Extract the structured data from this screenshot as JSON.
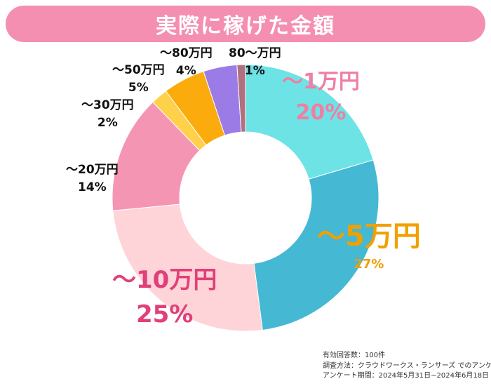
{
  "chart_data": {
    "type": "pie",
    "title": "実際に稼げた金額",
    "categories": [
      "〜1万円",
      "〜5万円",
      "〜10万円",
      "〜20万円",
      "〜30万円",
      "〜50万円",
      "〜80万円",
      "80〜万円"
    ],
    "values": [
      20,
      27,
      25,
      14,
      2,
      5,
      4,
      1
    ],
    "value_labels": [
      "20%",
      "27%",
      "25%",
      "14%",
      "2%",
      "5%",
      "4%",
      "1%"
    ],
    "colors": [
      "#6ee3e6",
      "#45b8d4",
      "#ffd4d8",
      "#f595b4",
      "#ffd04a",
      "#fbab0c",
      "#9b7ce6",
      "#b07080"
    ],
    "label_colors": [
      "#ef7fa4",
      "#f0a000",
      "#e0407a",
      "#111111",
      "#111111",
      "#111111",
      "#111111",
      "#111111"
    ],
    "hole": "donut",
    "start_angle": "12 o'clock",
    "direction": "clockwise"
  },
  "notes": {
    "respondents": "有効回答数：100件",
    "method": "調査方法：クラウドワークス・ランサーズ でのアンケート",
    "period": "アンケート期間：2024年5月31日~2024年6月18日"
  }
}
